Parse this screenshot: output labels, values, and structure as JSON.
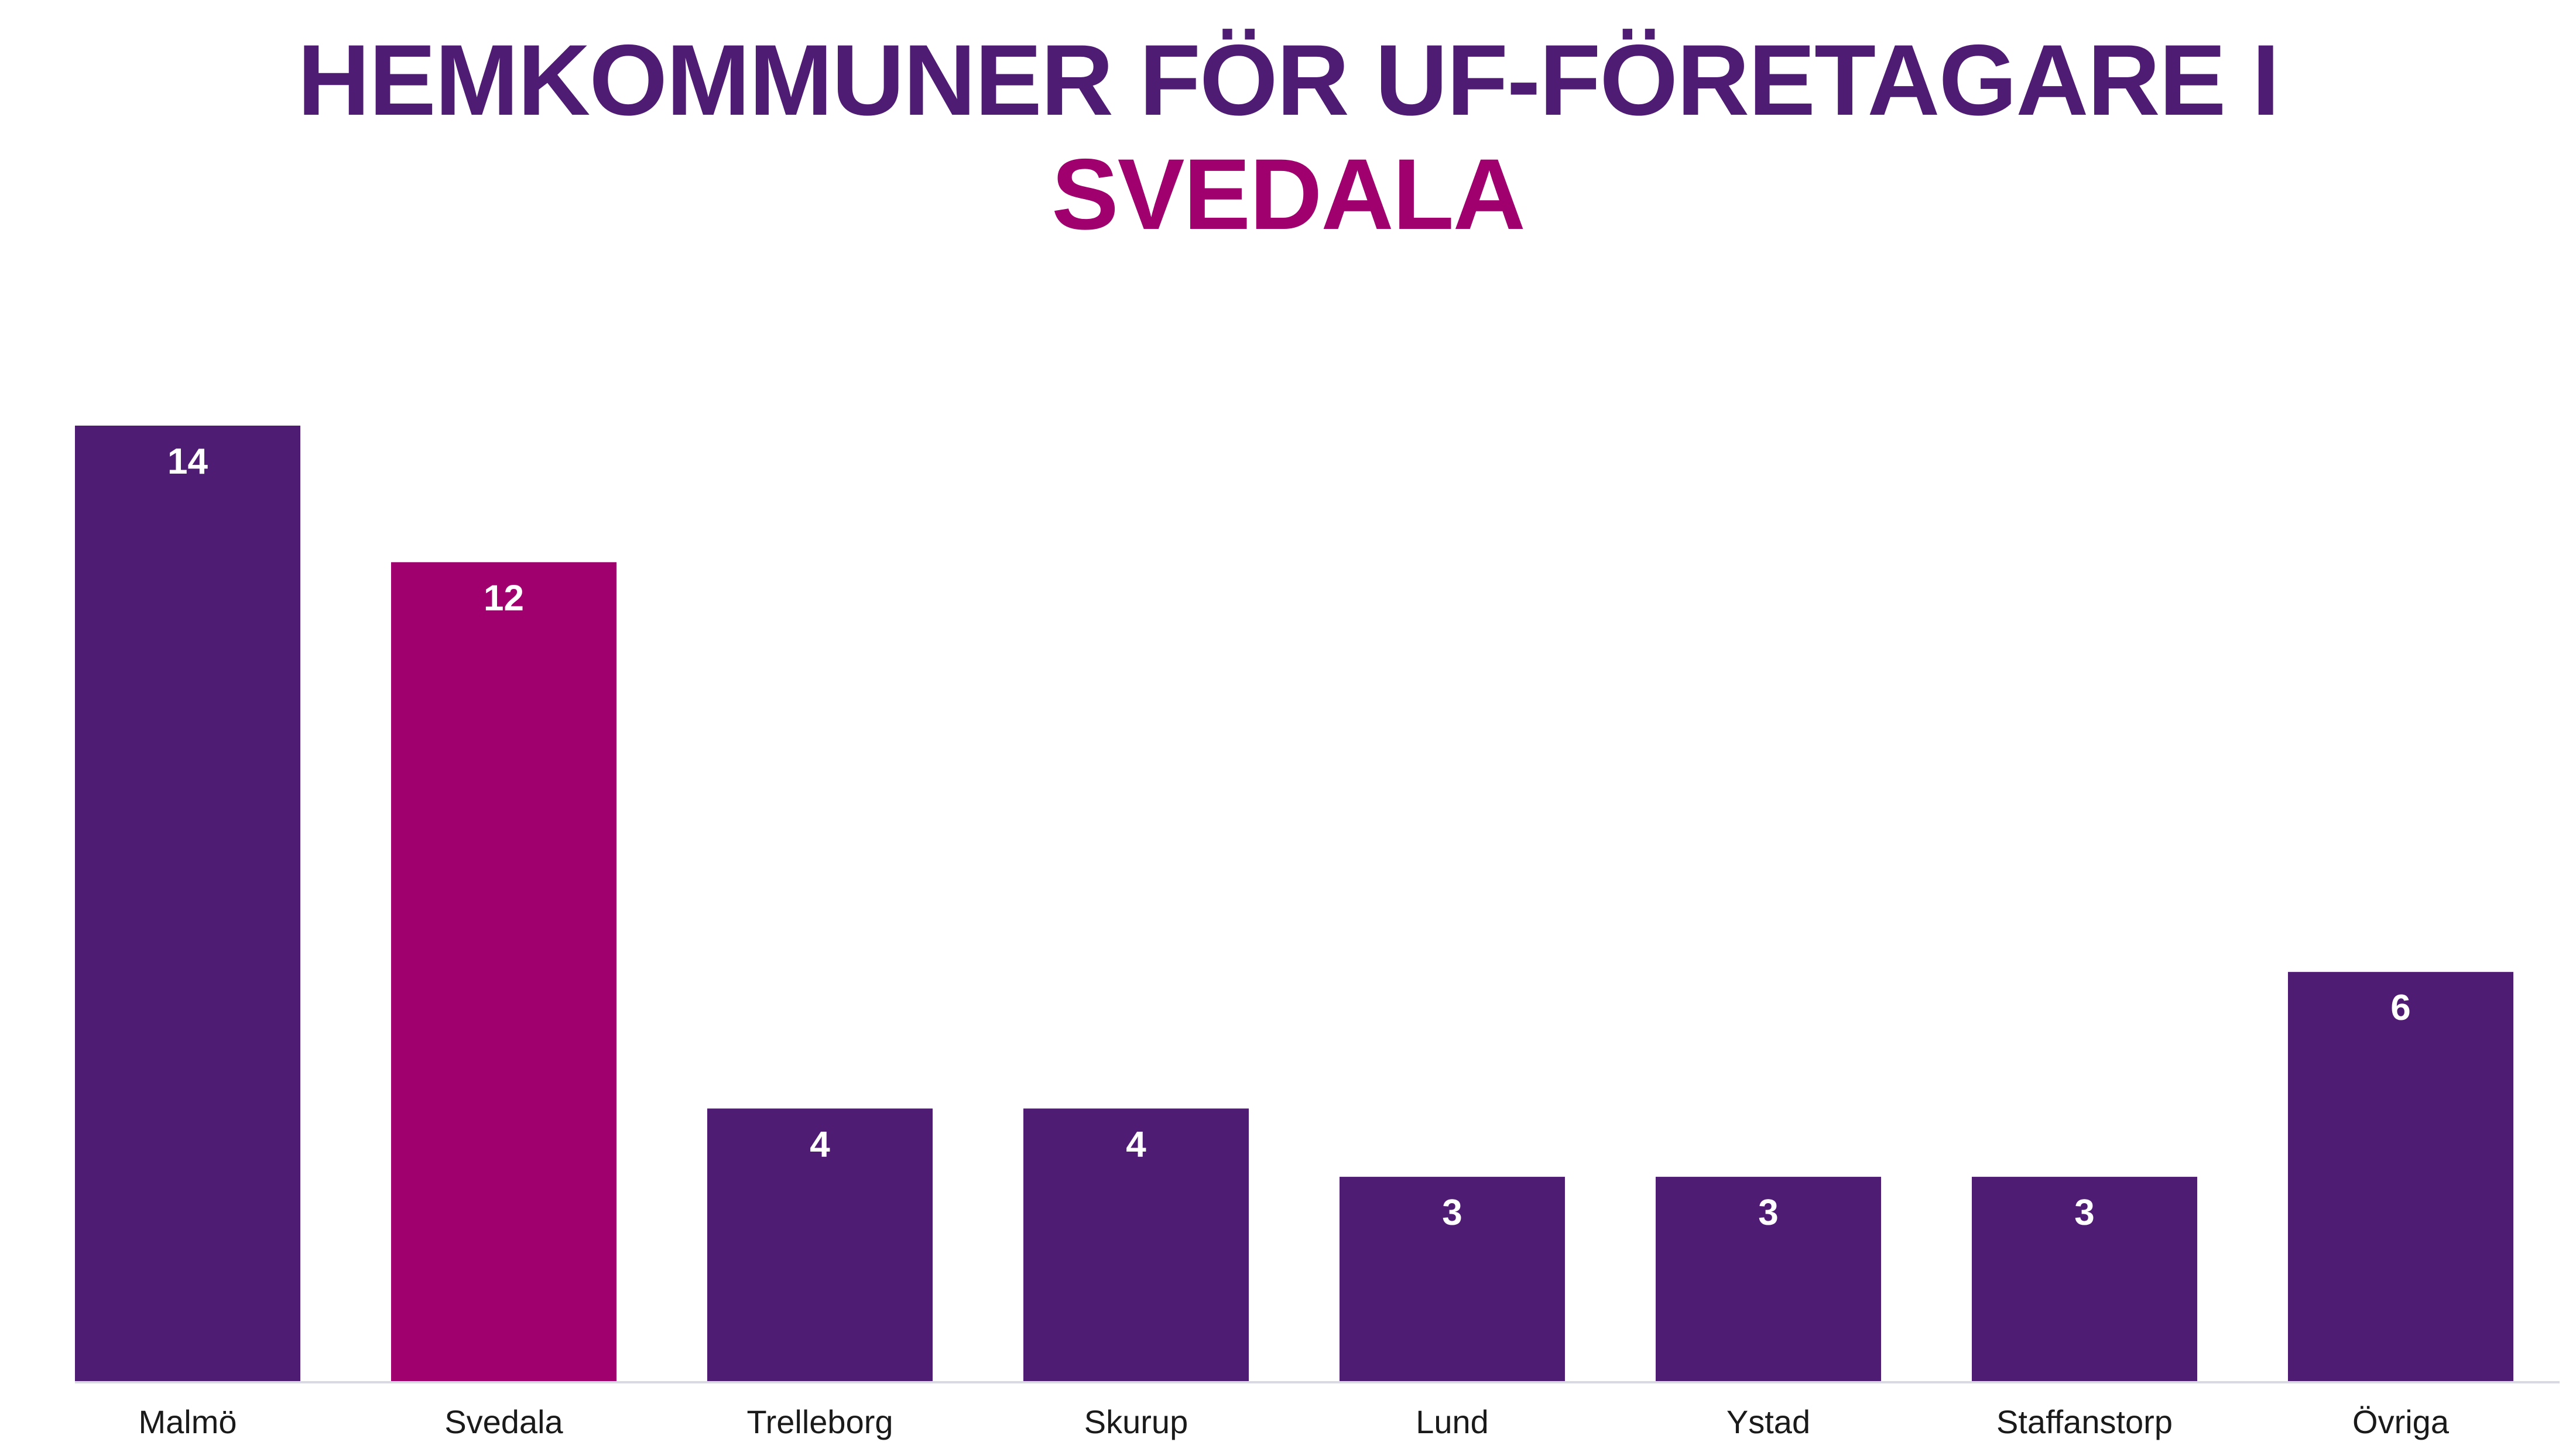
{
  "chart_data": {
    "type": "bar",
    "title_line_1": "HEMKOMMUNER FÖR UF-FÖRETAGARE I",
    "title_line_2": "SVEDALA",
    "categories": [
      "Malmö",
      "Svedala",
      "Trelleborg",
      "Skurup",
      "Lund",
      "Ystad",
      "Staffanstorp",
      "Övriga"
    ],
    "values": [
      14,
      12,
      4,
      4,
      3,
      3,
      3,
      6
    ],
    "highlight_category": "Svedala",
    "ylim": [
      0,
      14
    ],
    "grid": false,
    "legend": "none",
    "data_labels": "inside-top",
    "colors": {
      "bar": "#4f1c74",
      "highlight": "#a0006e",
      "title_line_1": "#4f1c74",
      "title_line_2": "#a0006e",
      "baseline": "#d9d9e3"
    }
  }
}
